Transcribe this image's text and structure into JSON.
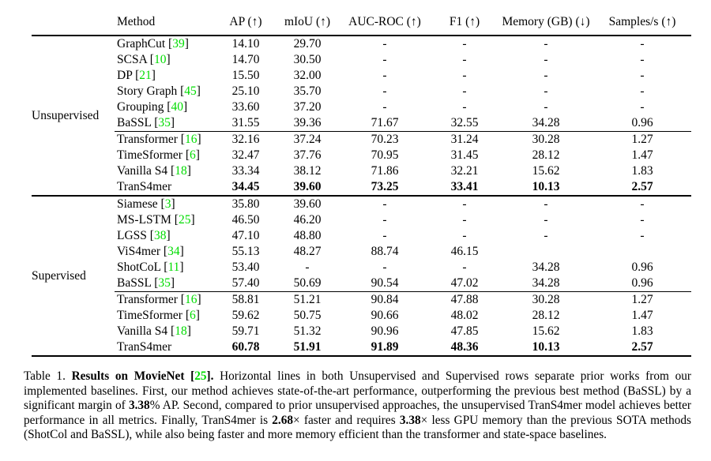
{
  "colors": {
    "citation_green": "#00DC00",
    "text": "#000000",
    "background": "#ffffff"
  },
  "table": {
    "columns": [
      {
        "label": "Method"
      },
      {
        "label": "AP (↑)"
      },
      {
        "label": "mIoU (↑)"
      },
      {
        "label": "AUC-ROC (↑)"
      },
      {
        "label": "F1 (↑)"
      },
      {
        "label": "Memory (GB) (↓)"
      },
      {
        "label": "Samples/s (↑)"
      }
    ],
    "groups": [
      {
        "label": "Unsupervised",
        "prior_rows": [
          {
            "method": "GraphCut",
            "cite": "39",
            "values": [
              "14.10",
              "29.70",
              "-",
              "-",
              "-",
              "-"
            ],
            "bold": false
          },
          {
            "method": "SCSA",
            "cite": "10",
            "values": [
              "14.70",
              "30.50",
              "-",
              "-",
              "-",
              "-"
            ],
            "bold": false
          },
          {
            "method": "DP",
            "cite": "21",
            "values": [
              "15.50",
              "32.00",
              "-",
              "-",
              "-",
              "-"
            ],
            "bold": false
          },
          {
            "method": "Story Graph",
            "cite": "45",
            "values": [
              "25.10",
              "35.70",
              "-",
              "-",
              "-",
              "-"
            ],
            "bold": false
          },
          {
            "method": "Grouping",
            "cite": "40",
            "values": [
              "33.60",
              "37.20",
              "-",
              "-",
              "-",
              "-"
            ],
            "bold": false
          },
          {
            "method": "BaSSL",
            "cite": "35",
            "values": [
              "31.55",
              "39.36",
              "71.67",
              "32.55",
              "34.28",
              "0.96"
            ],
            "bold": false
          }
        ],
        "our_rows": [
          {
            "method": "Transformer",
            "cite": "16",
            "values": [
              "32.16",
              "37.24",
              "70.23",
              "31.24",
              "30.28",
              "1.27"
            ],
            "bold": false
          },
          {
            "method": "TimeSformer",
            "cite": "6",
            "values": [
              "32.47",
              "37.76",
              "70.95",
              "31.45",
              "28.12",
              "1.47"
            ],
            "bold": false
          },
          {
            "method": "Vanilla S4",
            "cite": "18",
            "values": [
              "33.34",
              "38.12",
              "71.86",
              "32.21",
              "15.62",
              "1.83"
            ],
            "bold": false
          },
          {
            "method": "TranS4mer",
            "cite": null,
            "values": [
              "34.45",
              "39.60",
              "73.25",
              "33.41",
              "10.13",
              "2.57"
            ],
            "bold": true
          }
        ]
      },
      {
        "label": "Supervised",
        "prior_rows": [
          {
            "method": "Siamese",
            "cite": "3",
            "values": [
              "35.80",
              "39.60",
              "-",
              "-",
              "-",
              "-"
            ],
            "bold": false
          },
          {
            "method": "MS-LSTM",
            "cite": "25",
            "values": [
              "46.50",
              "46.20",
              "-",
              "-",
              "-",
              "-"
            ],
            "bold": false
          },
          {
            "method": "LGSS",
            "cite": "38",
            "values": [
              "47.10",
              "48.80",
              "-",
              "-",
              "-",
              "-"
            ],
            "bold": false
          },
          {
            "method": "ViS4mer",
            "cite": "34",
            "values": [
              "55.13",
              "48.27",
              "88.74",
              "46.15",
              "",
              ""
            ],
            "bold": false
          },
          {
            "method": "ShotCoL",
            "cite": "11",
            "values": [
              "53.40",
              "-",
              "-",
              "-",
              "34.28",
              "0.96"
            ],
            "bold": false
          },
          {
            "method": "BaSSL",
            "cite": "35",
            "values": [
              "57.40",
              "50.69",
              "90.54",
              "47.02",
              "34.28",
              "0.96"
            ],
            "bold": false
          }
        ],
        "our_rows": [
          {
            "method": "Transformer",
            "cite": "16",
            "values": [
              "58.81",
              "51.21",
              "90.84",
              "47.88",
              "30.28",
              "1.27"
            ],
            "bold": false
          },
          {
            "method": "TimeSformer",
            "cite": "6",
            "values": [
              "59.62",
              "50.75",
              "90.66",
              "48.02",
              "28.12",
              "1.47"
            ],
            "bold": false
          },
          {
            "method": "Vanilla S4",
            "cite": "18",
            "values": [
              "59.71",
              "51.32",
              "90.96",
              "47.85",
              "15.62",
              "1.83"
            ],
            "bold": false
          },
          {
            "method": "TranS4mer",
            "cite": null,
            "values": [
              "60.78",
              "51.91",
              "91.89",
              "48.36",
              "10.13",
              "2.57"
            ],
            "bold": true
          }
        ]
      }
    ]
  },
  "caption": {
    "segments": [
      {
        "text": "Table 1. ",
        "style": "normal"
      },
      {
        "text": "Results on MovieNet [",
        "style": "bold"
      },
      {
        "text": "25",
        "style": "bold-green"
      },
      {
        "text": "]. ",
        "style": "bold"
      },
      {
        "text": "Horizontal lines in both Unsupervised and Supervised rows separate prior works from our implemented baselines. First, our method achieves state-of-the-art performance, outperforming the previous best method (BaSSL) by a significant margin of ",
        "style": "normal"
      },
      {
        "text": "3.38",
        "style": "bold"
      },
      {
        "text": "% AP. Second, compared to prior unsupervised approaches, the unsupervised TranS4mer model achieves better performance in all metrics. Finally, TranS4mer is ",
        "style": "normal"
      },
      {
        "text": "2.68",
        "style": "bold"
      },
      {
        "text": "× faster and requires ",
        "style": "normal"
      },
      {
        "text": "3.38",
        "style": "bold"
      },
      {
        "text": "× less GPU memory than the previous SOTA methods (ShotCol and BaSSL), while also being faster and more memory efficient than the transformer and state-space baselines.",
        "style": "normal"
      }
    ]
  }
}
